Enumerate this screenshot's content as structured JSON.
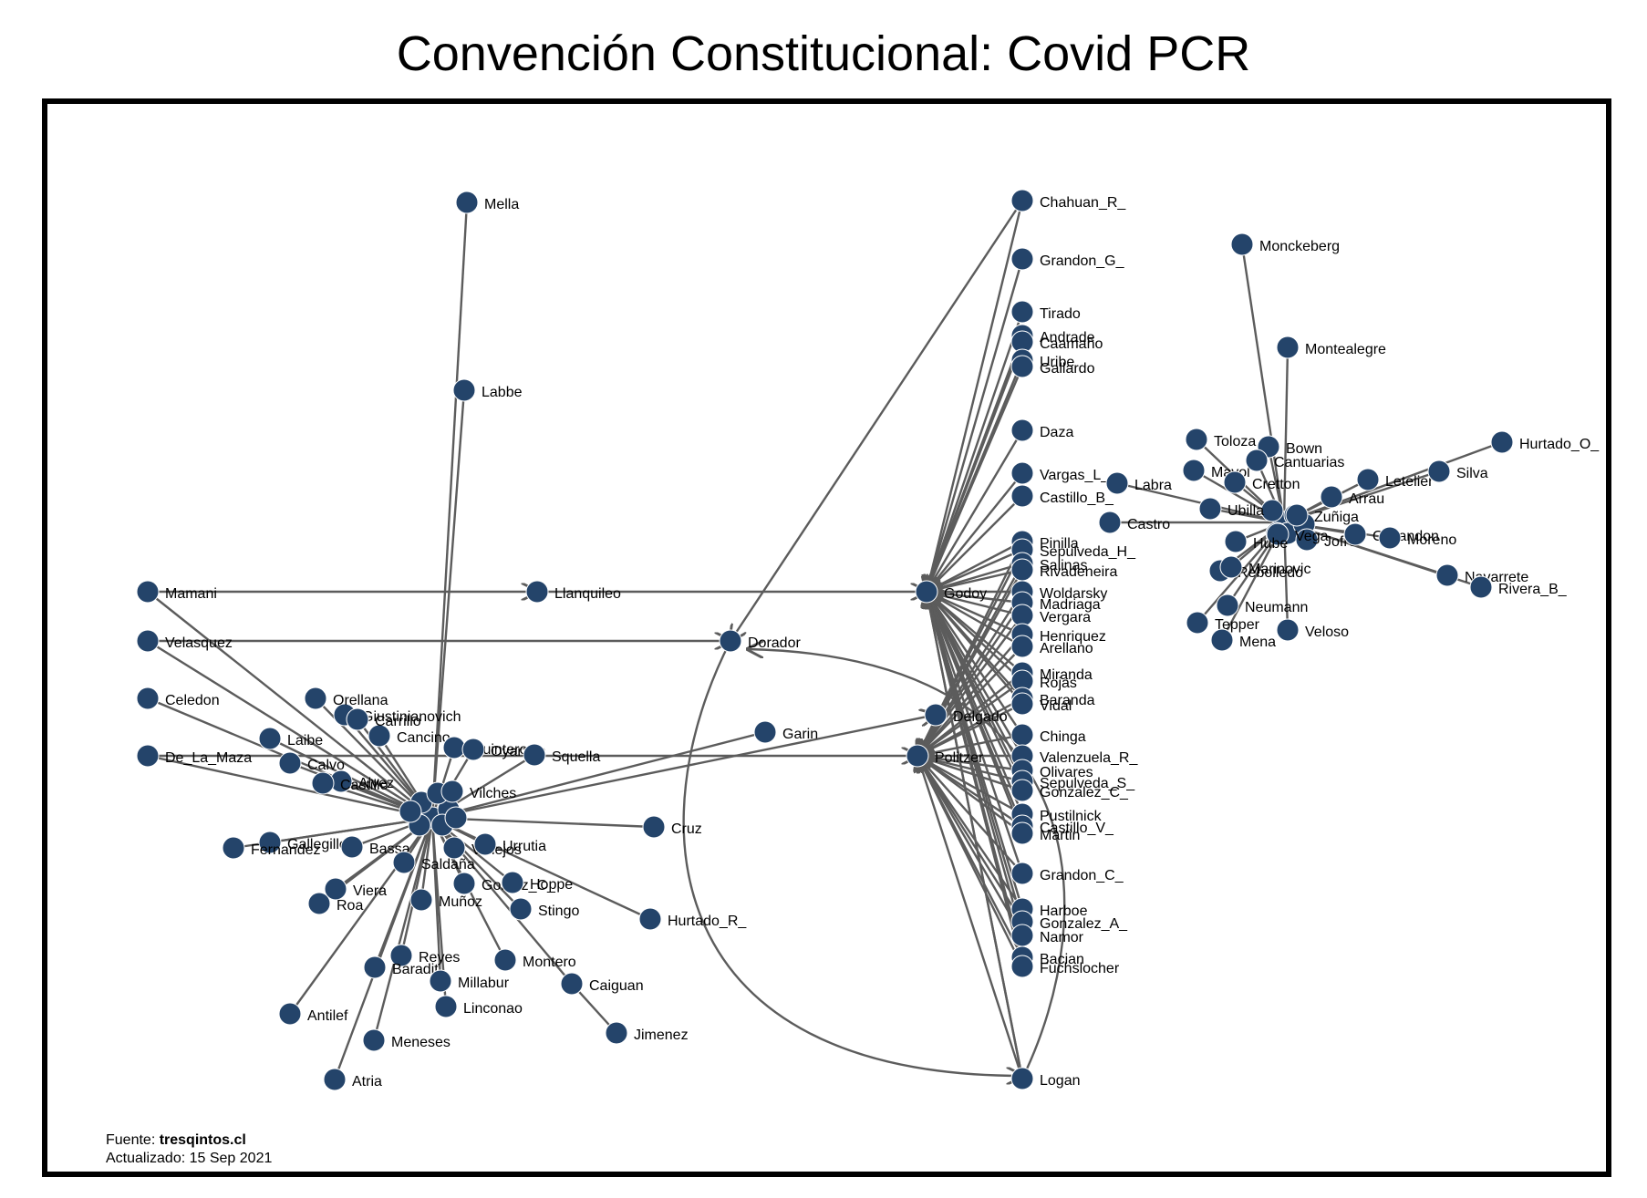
{
  "title": "Convención Constitucional: Covid PCR",
  "footer": {
    "source_label": "Fuente: ",
    "source_value": "tresqintos.cl",
    "updated": "Actualizado: 15 Sep 2021"
  },
  "colors": {
    "node": "#24446a",
    "edge": "#5c5c5c",
    "frame": "#000000",
    "label": "#000000"
  },
  "labels": [
    "Mella",
    "Labbe",
    "Mamani",
    "Llanquileo",
    "Velasquez",
    "Dorador",
    "Celedon",
    "De_La_Maza",
    "Laibe",
    "Calvo",
    "Cancino",
    "Giustinianovich",
    "Carrillo",
    "Orellana",
    "Quinteros",
    "Oyarzun",
    "Squella",
    "Alvez",
    "Castillo",
    "Vilches",
    "Gallegillos",
    "Fernandez",
    "Bassa",
    "Vallejos",
    "Urrutia",
    "Cruz",
    "Garin",
    "Saldaña",
    "Viera",
    "Roa",
    "Muñoz",
    "Gomez_C_",
    "Hoppe",
    "Stingo",
    "Hurtado_R_",
    "Reyes",
    "Baradit",
    "Montero",
    "Millabur",
    "Linconao",
    "Caiguan",
    "Jimenez",
    "Antilef",
    "Meneses",
    "Atria",
    "Godoy",
    "Politzer",
    "Delgado",
    "Chahuan_R_",
    "Grandon_G_",
    "Tirado",
    "Andrade",
    "Caamaño",
    "Uribe",
    "Gallardo",
    "Daza",
    "Vargas_L_",
    "Castillo_B_",
    "Pinilla",
    "Sepulveda_H_",
    "Salinas",
    "Rivadeneira",
    "Woldarsky",
    "Madriaga",
    "Vergara",
    "Henriquez",
    "Arellano",
    "Miranda",
    "Rojas",
    "Baranda",
    "Vidal",
    "Chinga",
    "Valenzuela_R_",
    "Olivares",
    "Sepulveda_S_",
    "Gonzalez_C_",
    "Pustilnick",
    "Castillo_V_",
    "Martin",
    "Grandon_C_",
    "Harboe",
    "Gonzalez_A_",
    "Namor",
    "Bacian",
    "Fuchslocher",
    "Logan",
    "Monckeberg",
    "Montealegre",
    "Toloza",
    "Bown",
    "Mayol",
    "Cantuarias",
    "Cretton",
    "Letelier",
    "Labra",
    "Silva",
    "Arrau",
    "Hurtado_O_",
    "Ubilla",
    "Castro",
    "Jofre",
    "Zuñiga",
    "Vega",
    "Ossandon",
    "Moreno",
    "Hube",
    "Rebolledo",
    "Marinovic",
    "Navarrete",
    "Rivera_B_",
    "Neumann",
    "Tepper",
    "Mena",
    "Veloso"
  ]
}
